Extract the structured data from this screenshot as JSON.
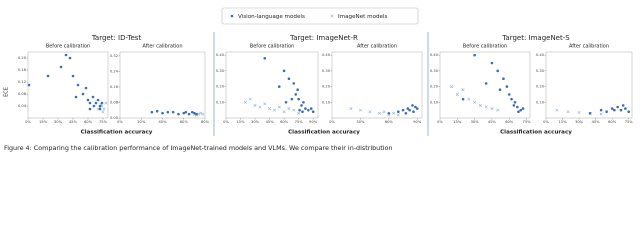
{
  "chart_data": {
    "type": "scatter",
    "series": [
      {
        "name": "Vision-language models",
        "color": "#3a6db5",
        "marker": "dot"
      },
      {
        "name": "ImageNet models",
        "color": "#8fb3dc",
        "marker": "cross"
      }
    ],
    "ylabel": "ECE",
    "caption": "Figure 4: Comparing the calibration performance of ImageNet-trained models and VLMs. We compare their in-distribution",
    "groups": [
      {
        "title": "Target: ID-Test",
        "xlabel": "Classification accuracy",
        "panels": [
          {
            "subtitle": "Before calibration",
            "xlim": [
              0,
              80
            ],
            "ylim": [
              0,
              0.22
            ],
            "xticks": [
              {
                "value": 0,
                "label": "0%"
              },
              {
                "value": 15,
                "label": "15%"
              },
              {
                "value": 30,
                "label": "30%"
              },
              {
                "value": 45,
                "label": "45%"
              },
              {
                "value": 60,
                "label": "60%"
              },
              {
                "value": 75,
                "label": "75%"
              }
            ],
            "yticks": [
              0.04,
              0.08,
              0.12,
              0.16,
              {
                "value": 0.2,
                "label": "0.20"
              }
            ],
            "points": [
              {
                "x": [
                  20,
                  38,
                  42,
                  45,
                  33,
                  50,
                  55,
                  60,
                  62,
                  65,
                  66,
                  68,
                  70,
                  72,
                  72,
                  74,
                  58,
                  48,
                  62,
                  1
                ],
                "y": [
                  0.14,
                  0.21,
                  0.2,
                  0.14,
                  0.17,
                  0.11,
                  0.08,
                  0.06,
                  0.05,
                  0.07,
                  0.04,
                  0.05,
                  0.06,
                  0.03,
                  0.04,
                  0.05,
                  0.1,
                  0.07,
                  0.03,
                  0.11
                ]
              },
              {
                "x": [
                  70,
                  72,
                  74,
                  76,
                  78,
                  75,
                  73
                ],
                "y": [
                  0.03,
                  0.035,
                  0.04,
                  0.03,
                  0.05,
                  0.02,
                  0.045
                ]
              }
            ]
          },
          {
            "subtitle": "After calibration",
            "xlim": [
              0,
              80
            ],
            "ylim": [
              0,
              0.34
            ],
            "xticks": [
              {
                "value": 0,
                "label": "0%"
              },
              {
                "value": 20,
                "label": "20%"
              },
              {
                "value": 40,
                "label": "40%"
              },
              {
                "value": 60,
                "label": "60%"
              },
              {
                "value": 80,
                "label": "80%"
              }
            ],
            "yticks": [
              {
                "value": 0.0,
                "label": "0.00"
              },
              0.08,
              0.16,
              0.24,
              0.32
            ],
            "points": [
              {
                "x": [
                  30,
                  40,
                  50,
                  55,
                  60,
                  62,
                  65,
                  68,
                  70,
                  72,
                  35,
                  45
                ],
                "y": [
                  0.03,
                  0.025,
                  0.03,
                  0.02,
                  0.025,
                  0.03,
                  0.02,
                  0.03,
                  0.025,
                  0.02,
                  0.035,
                  0.03
                ]
              },
              {
                "x": [
                  70,
                  72,
                  74,
                  76,
                  78
                ],
                "y": [
                  0.02,
                  0.015,
                  0.02,
                  0.025,
                  0.02
                ]
              }
            ]
          }
        ]
      },
      {
        "title": "Target: ImageNet-R",
        "xlabel": "Classification accuracy",
        "panels": [
          {
            "subtitle": "Before calibration",
            "xlim": [
              0,
              95
            ],
            "ylim": [
              0,
              0.42
            ],
            "xticks": [
              {
                "value": 0,
                "label": "0%"
              },
              {
                "value": 15,
                "label": "15%"
              },
              {
                "value": 30,
                "label": "30%"
              },
              {
                "value": 45,
                "label": "45%"
              },
              {
                "value": 60,
                "label": "60%"
              },
              {
                "value": 75,
                "label": "75%"
              },
              {
                "value": 90,
                "label": "90%"
              }
            ],
            "yticks": [
              {
                "value": 0.1,
                "label": "0.10"
              },
              {
                "value": 0.2,
                "label": "0.20"
              },
              {
                "value": 0.3,
                "label": "0.30"
              },
              {
                "value": 0.4,
                "label": "0.40"
              }
            ],
            "points": [
              {
                "x": [
                  40,
                  60,
                  65,
                  70,
                  72,
                  75,
                  78,
                  80,
                  82,
                  85,
                  68,
                  74,
                  76,
                  79,
                  55,
                  62,
                  88,
                  90
                ],
                "y": [
                  0.38,
                  0.3,
                  0.25,
                  0.22,
                  0.15,
                  0.12,
                  0.08,
                  0.1,
                  0.06,
                  0.05,
                  0.12,
                  0.18,
                  0.05,
                  0.04,
                  0.2,
                  0.1,
                  0.06,
                  0.04
                ]
              },
              {
                "x": [
                  20,
                  25,
                  30,
                  35,
                  40,
                  45,
                  50,
                  55,
                  60,
                  65,
                  70,
                  75
                ],
                "y": [
                  0.1,
                  0.12,
                  0.08,
                  0.07,
                  0.09,
                  0.06,
                  0.05,
                  0.07,
                  0.04,
                  0.06,
                  0.05,
                  0.03
                ]
              }
            ]
          },
          {
            "subtitle": "After calibration",
            "xlim": [
              0,
              95
            ],
            "ylim": [
              0,
              0.42
            ],
            "xticks": [
              {
                "value": 0,
                "label": "0%"
              },
              {
                "value": 30,
                "label": "30%"
              },
              {
                "value": 60,
                "label": "60%"
              },
              {
                "value": 90,
                "label": "90%"
              }
            ],
            "yticks": [
              {
                "value": 0.1,
                "label": "0.10"
              },
              {
                "value": 0.2,
                "label": "0.20"
              },
              {
                "value": 0.3,
                "label": "0.30"
              },
              {
                "value": 0.4,
                "label": "0.40"
              }
            ],
            "points": [
              {
                "x": [
                  60,
                  70,
                  75,
                  80,
                  82,
                  85,
                  88,
                  90,
                  78,
                  86
                ],
                "y": [
                  0.03,
                  0.04,
                  0.05,
                  0.06,
                  0.05,
                  0.08,
                  0.07,
                  0.06,
                  0.03,
                  0.04
                ]
              },
              {
                "x": [
                  20,
                  30,
                  40,
                  50,
                  55,
                  60,
                  65,
                  70
                ],
                "y": [
                  0.06,
                  0.05,
                  0.04,
                  0.03,
                  0.04,
                  0.02,
                  0.03,
                  0.02
                ]
              }
            ]
          }
        ]
      },
      {
        "title": "Target: ImageNet-S",
        "xlabel": "Classification accuracy",
        "panels": [
          {
            "subtitle": "Before calibration",
            "xlim": [
              0,
              78
            ],
            "ylim": [
              0,
              0.42
            ],
            "xticks": [
              {
                "value": 0,
                "label": "0%"
              },
              {
                "value": 15,
                "label": "15%"
              },
              {
                "value": 30,
                "label": "30%"
              },
              {
                "value": 45,
                "label": "45%"
              },
              {
                "value": 60,
                "label": "60%"
              },
              {
                "value": 75,
                "label": "75%"
              }
            ],
            "yticks": [
              {
                "value": 0.1,
                "label": "0.10"
              },
              {
                "value": 0.2,
                "label": "0.20"
              },
              {
                "value": 0.3,
                "label": "0.30"
              },
              {
                "value": 0.4,
                "label": "0.40"
              }
            ],
            "points": [
              {
                "x": [
                  30,
                  45,
                  50,
                  55,
                  58,
                  60,
                  62,
                  65,
                  67,
                  70,
                  72,
                  64,
                  68,
                  52,
                  40,
                  20
                ],
                "y": [
                  0.4,
                  0.35,
                  0.3,
                  0.25,
                  0.2,
                  0.15,
                  0.12,
                  0.1,
                  0.07,
                  0.05,
                  0.06,
                  0.08,
                  0.04,
                  0.18,
                  0.22,
                  0.12
                ]
              },
              {
                "x": [
                  10,
                  15,
                  20,
                  25,
                  30,
                  35,
                  40,
                  45,
                  50
                ],
                "y": [
                  0.2,
                  0.15,
                  0.18,
                  0.12,
                  0.1,
                  0.08,
                  0.07,
                  0.06,
                  0.05
                ]
              }
            ]
          },
          {
            "subtitle": "After calibration",
            "xlim": [
              0,
              78
            ],
            "ylim": [
              0,
              0.42
            ],
            "xticks": [
              {
                "value": 0,
                "label": "0%"
              },
              {
                "value": 15,
                "label": "15%"
              },
              {
                "value": 30,
                "label": "30%"
              },
              {
                "value": 45,
                "label": "45%"
              },
              {
                "value": 60,
                "label": "60%"
              },
              {
                "value": 75,
                "label": "75%"
              }
            ],
            "yticks": [
              {
                "value": 0.1,
                "label": "0.10"
              },
              {
                "value": 0.2,
                "label": "0.20"
              },
              {
                "value": 0.3,
                "label": "0.30"
              },
              {
                "value": 0.4,
                "label": "0.40"
              }
            ],
            "points": [
              {
                "x": [
                  40,
                  50,
                  55,
                  60,
                  62,
                  65,
                  68,
                  70,
                  72,
                  75
                ],
                "y": [
                  0.03,
                  0.05,
                  0.04,
                  0.06,
                  0.05,
                  0.07,
                  0.05,
                  0.08,
                  0.06,
                  0.04
                ]
              },
              {
                "x": [
                  10,
                  20,
                  30,
                  40,
                  50
                ],
                "y": [
                  0.05,
                  0.04,
                  0.035,
                  0.03,
                  0.025
                ]
              }
            ]
          }
        ]
      }
    ]
  }
}
